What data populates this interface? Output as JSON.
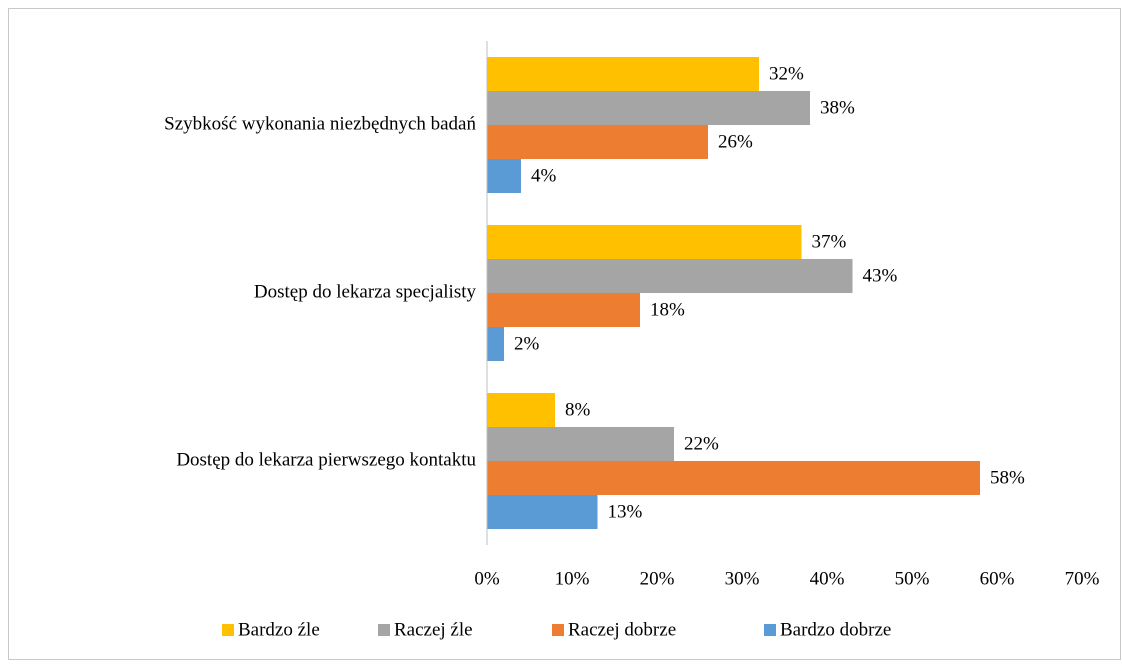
{
  "chart_data": {
    "type": "hbar",
    "categories": [
      "Szybkość wykonania niezbędnych badań",
      "Dostęp do lekarza specjalisty",
      "Dostęp do lekarza pierwszego kontaktu"
    ],
    "series": [
      {
        "name": "Bardzo źle",
        "color": "#FFC000",
        "values": [
          32,
          37,
          8
        ],
        "value_labels": [
          "32%",
          "37%",
          "8%"
        ]
      },
      {
        "name": "Raczej źle",
        "color": "#A5A5A5",
        "values": [
          38,
          43,
          22
        ],
        "value_labels": [
          "38%",
          "43%",
          "22%"
        ]
      },
      {
        "name": "Raczej dobrze",
        "color": "#ED7D31",
        "values": [
          26,
          18,
          58
        ],
        "value_labels": [
          "26%",
          "18%",
          "58%"
        ]
      },
      {
        "name": "Bardzo dobrze",
        "color": "#5B9BD5",
        "values": [
          4,
          2,
          13
        ],
        "value_labels": [
          "4%",
          "2%",
          "13%"
        ]
      }
    ],
    "xlim": [
      0,
      70
    ],
    "xticks": [
      {
        "value": 0,
        "label": "0%"
      },
      {
        "value": 10,
        "label": "10%"
      },
      {
        "value": 20,
        "label": "20%"
      },
      {
        "value": 30,
        "label": "30%"
      },
      {
        "value": 40,
        "label": "40%"
      },
      {
        "value": 50,
        "label": "50%"
      },
      {
        "value": 60,
        "label": "60%"
      },
      {
        "value": 70,
        "label": "70%"
      }
    ],
    "legend": "bottom"
  }
}
